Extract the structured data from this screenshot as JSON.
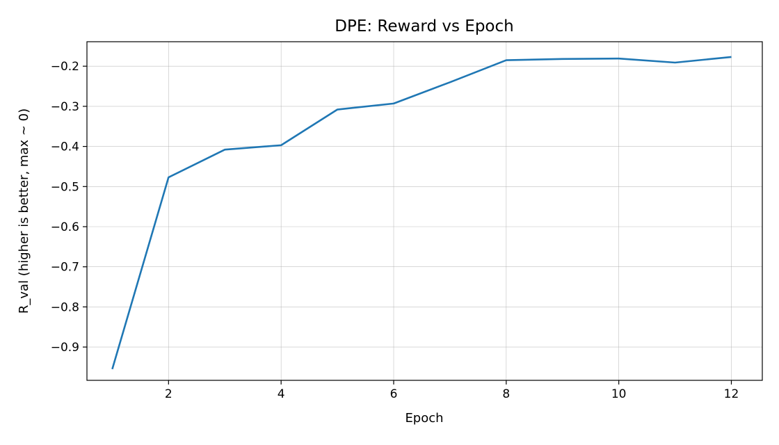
{
  "chart_data": {
    "type": "line",
    "title": "DPE: Reward vs Epoch",
    "xlabel": "Epoch",
    "ylabel": "R_val (higher is better, max ~ 0)",
    "xlim": [
      0.55,
      12.55
    ],
    "ylim": [
      -0.983,
      -0.139
    ],
    "x_ticks": [
      2,
      4,
      6,
      8,
      10,
      12
    ],
    "x_tick_labels": [
      "2",
      "4",
      "6",
      "8",
      "10",
      "12"
    ],
    "y_ticks": [
      -0.9,
      -0.8,
      -0.7,
      -0.6,
      -0.5,
      -0.4,
      -0.3,
      -0.2
    ],
    "y_tick_labels": [
      "−0.9",
      "−0.8",
      "−0.7",
      "−0.6",
      "−0.5",
      "−0.4",
      "−0.3",
      "−0.2"
    ],
    "grid": true,
    "series": [
      {
        "color": "#1f77b4",
        "x": [
          1,
          2,
          3,
          4,
          5,
          6,
          7,
          8,
          9,
          10,
          11,
          12
        ],
        "y": [
          -0.955,
          -0.477,
          -0.408,
          -0.397,
          -0.308,
          -0.293,
          -0.24,
          -0.185,
          -0.182,
          -0.181,
          -0.191,
          -0.177
        ]
      }
    ]
  }
}
